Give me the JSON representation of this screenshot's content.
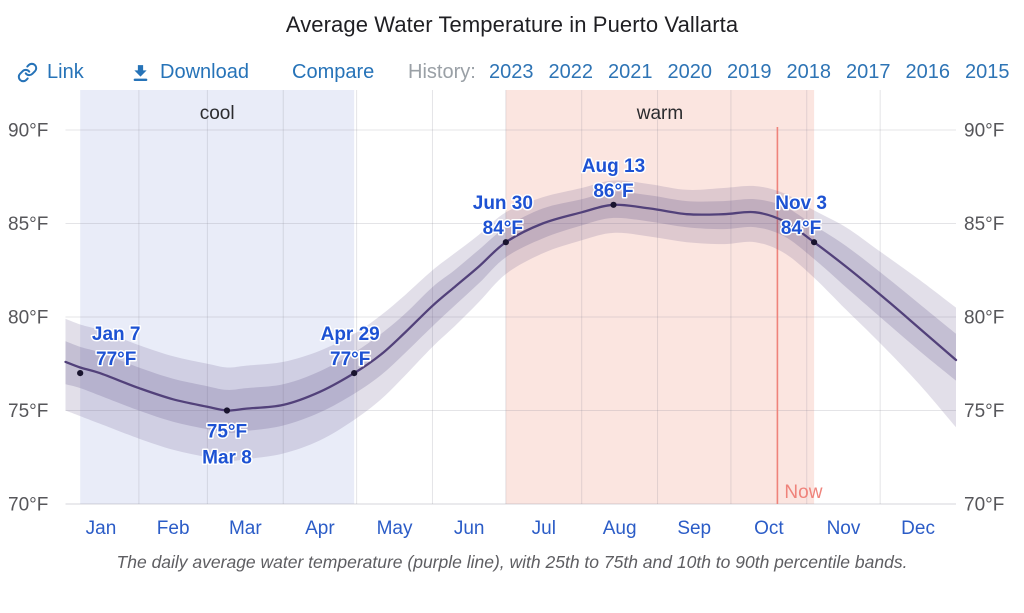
{
  "title": "Average Water Temperature in Puerto Vallarta",
  "toolbar": {
    "link_label": "Link",
    "download_label": "Download",
    "compare_label": "Compare",
    "history_label": "History:",
    "history_years": [
      "2023",
      "2022",
      "2021",
      "2020",
      "2019",
      "2018",
      "2017",
      "2016",
      "2015"
    ],
    "link_color": "#2673b8",
    "years_color": "#2e74b5"
  },
  "chart_data": {
    "type": "line",
    "title": "Average Water Temperature in Puerto Vallarta",
    "caption": "The daily average water temperature (purple line), with 25th to 75th and 10th to 90th percentile bands.",
    "x_axis": {
      "unit": "day of year",
      "tick_labels": [
        "Jan",
        "Feb",
        "Mar",
        "Apr",
        "May",
        "Jun",
        "Jul",
        "Aug",
        "Sep",
        "Oct",
        "Nov",
        "Dec"
      ],
      "month_days": [
        31,
        28,
        31,
        30,
        31,
        30,
        31,
        31,
        30,
        31,
        30,
        31
      ]
    },
    "y_axis": {
      "ticks": [
        70,
        75,
        80,
        85,
        90
      ],
      "tick_labels": [
        "70°F",
        "75°F",
        "80°F",
        "85°F",
        "90°F"
      ],
      "range": [
        69.8,
        92.2
      ],
      "label_sides": "both"
    },
    "seasons": [
      {
        "label": "cool",
        "start_date": "Jan 7",
        "start_day": 7,
        "end_date": "Apr 29",
        "end_day": 119,
        "fill": "#e9ecf8"
      },
      {
        "label": "warm",
        "start_date": "Jun 30",
        "start_day": 181,
        "end_date": "Nov 3",
        "end_day": 307,
        "fill": "#fbe5e0"
      }
    ],
    "now_marker": {
      "label": "Now",
      "day": 292,
      "color": "#ef837b"
    },
    "series": {
      "name": "Daily average water temperature",
      "line_color": "#52417a",
      "marker_color": "#19142e",
      "bands": [
        {
          "name": "25th to 75th percentile",
          "fill": "rgba(93,79,134,0.22)"
        },
        {
          "name": "10th to 90th percentile",
          "fill": "rgba(93,79,134,0.18)"
        }
      ],
      "columns": [
        "day",
        "p10",
        "p25",
        "mean",
        "p75",
        "p90"
      ],
      "rows": [
        [
          1,
          75.0,
          76.4,
          77.6,
          78.7,
          79.9
        ],
        [
          7,
          74.7,
          76.2,
          77.3,
          78.4,
          79.6
        ],
        [
          15,
          74.3,
          75.8,
          77.0,
          78.1,
          79.3
        ],
        [
          31,
          73.5,
          75.0,
          76.2,
          77.3,
          78.5
        ],
        [
          45,
          72.9,
          74.4,
          75.6,
          76.7,
          77.9
        ],
        [
          59,
          72.5,
          74.0,
          75.2,
          76.3,
          77.5
        ],
        [
          67,
          72.3,
          73.8,
          75.0,
          76.1,
          77.3
        ],
        [
          75,
          72.4,
          73.9,
          75.1,
          76.2,
          77.4
        ],
        [
          90,
          72.7,
          74.2,
          75.3,
          76.4,
          77.6
        ],
        [
          105,
          73.4,
          74.9,
          76.0,
          77.1,
          78.2
        ],
        [
          119,
          74.5,
          75.9,
          77.0,
          78.1,
          79.1
        ],
        [
          130,
          75.6,
          76.9,
          78.0,
          79.1,
          80.1
        ],
        [
          140,
          76.9,
          78.1,
          79.2,
          80.2,
          81.2
        ],
        [
          151,
          78.4,
          79.5,
          80.6,
          81.6,
          82.5
        ],
        [
          160,
          79.5,
          80.6,
          81.6,
          82.5,
          83.4
        ],
        [
          170,
          80.8,
          81.8,
          82.7,
          83.6,
          84.4
        ],
        [
          181,
          82.3,
          83.2,
          84.0,
          84.8,
          85.6
        ],
        [
          196,
          83.4,
          84.2,
          85.0,
          85.8,
          86.4
        ],
        [
          212,
          84.1,
          84.9,
          85.6,
          86.3,
          86.9
        ],
        [
          225,
          84.5,
          85.3,
          86.0,
          86.7,
          87.3
        ],
        [
          240,
          84.3,
          85.1,
          85.8,
          86.5,
          87.1
        ],
        [
          255,
          84.0,
          84.8,
          85.5,
          86.2,
          86.8
        ],
        [
          270,
          83.9,
          84.7,
          85.5,
          86.2,
          86.9
        ],
        [
          283,
          84.0,
          84.8,
          85.6,
          86.3,
          87.0
        ],
        [
          295,
          83.4,
          84.3,
          85.1,
          85.9,
          86.6
        ],
        [
          307,
          82.1,
          83.1,
          84.0,
          84.9,
          85.7
        ],
        [
          320,
          80.4,
          81.6,
          82.7,
          83.8,
          84.8
        ],
        [
          334,
          78.6,
          80.0,
          81.2,
          82.4,
          83.5
        ],
        [
          350,
          76.4,
          78.2,
          79.4,
          80.7,
          82.0
        ],
        [
          365,
          74.1,
          76.6,
          77.7,
          79.1,
          80.5
        ]
      ]
    },
    "annotations": [
      {
        "date": "Jan 7",
        "day": 7,
        "value": 77,
        "value_label": "77°F",
        "placement": "above"
      },
      {
        "date": "Mar 8",
        "day": 67,
        "value": 75,
        "value_label": "75°F",
        "placement": "below"
      },
      {
        "date": "Apr 29",
        "day": 119,
        "value": 77,
        "value_label": "77°F",
        "placement": "above"
      },
      {
        "date": "Jun 30",
        "day": 181,
        "value": 84,
        "value_label": "84°F",
        "placement": "above"
      },
      {
        "date": "Aug 13",
        "day": 225,
        "value": 86,
        "value_label": "86°F",
        "placement": "above"
      },
      {
        "date": "Nov 3",
        "day": 307,
        "value": 84,
        "value_label": "84°F",
        "placement": "above"
      }
    ],
    "colors": {
      "annotation_text": "#1d52d3",
      "month_labels": "#2b5cc7",
      "axis_labels": "#56565a",
      "gridline": "rgba(130,130,145,0.22)",
      "season_label_text": "#2b2b2e",
      "caption_text": "#5e5e62"
    },
    "grid": true,
    "legend": false
  }
}
